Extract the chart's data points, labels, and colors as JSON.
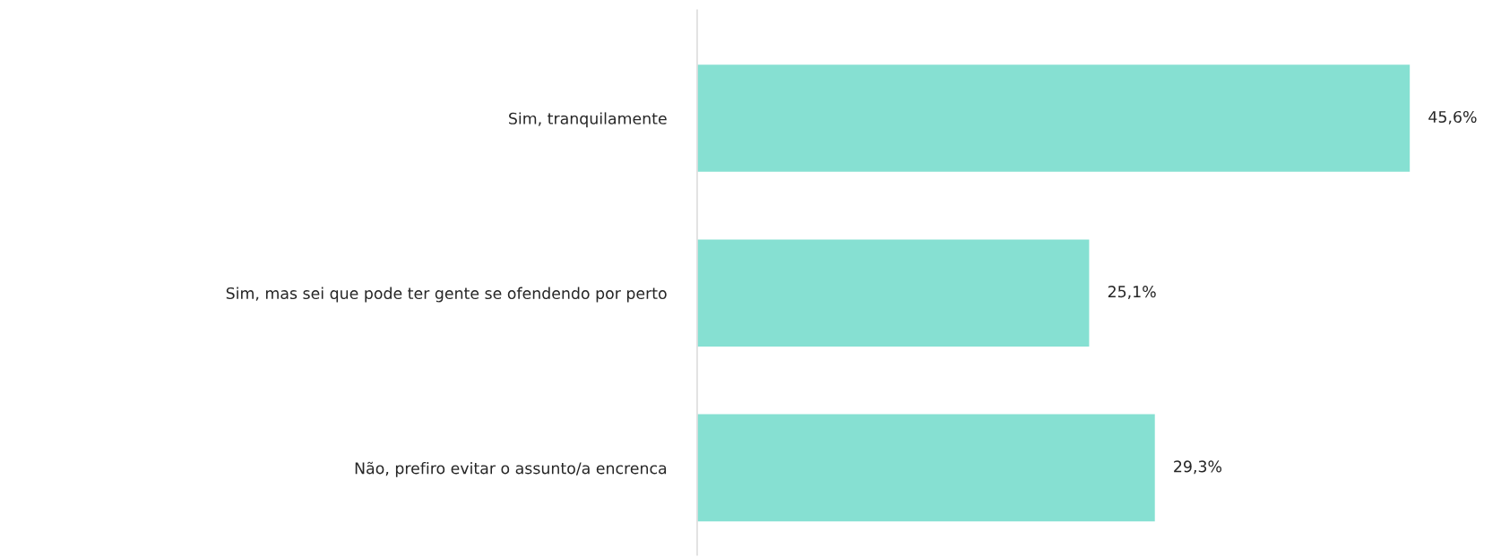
{
  "chart_data": {
    "type": "bar",
    "orientation": "horizontal",
    "categories": [
      "Sim, tranquilamente",
      "Sim, mas sei que pode ter gente se ofendendo por perto",
      "Não, prefiro evitar o assunto/a encrenca"
    ],
    "values": [
      45.6,
      25.1,
      29.3
    ],
    "value_labels": [
      "45,6%",
      "25,1%",
      "29,3%"
    ],
    "color": "#86e0d2"
  }
}
